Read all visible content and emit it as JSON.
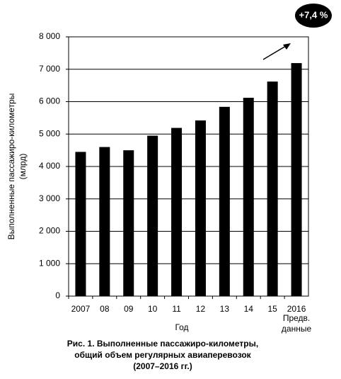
{
  "chart_data": {
    "type": "bar",
    "title_lines": [
      "Рис. 1. Выполненные пассажиро-километры,",
      "общий объем регулярных авиаперевозок",
      "(2007–2016 гг.)"
    ],
    "y_label_lines": [
      "Выполненные пассажиро-километры",
      "(млрд)"
    ],
    "x_label": "Год",
    "note_lines": [
      "Предв.",
      "данные"
    ],
    "annotation": "+7,4 %",
    "categories": [
      "2007",
      "08",
      "09",
      "10",
      "11",
      "12",
      "13",
      "14",
      "15",
      "2016"
    ],
    "values": [
      4450,
      4600,
      4500,
      4950,
      5190,
      5420,
      5840,
      6120,
      6620,
      7190
    ],
    "color": "#000000",
    "ylim": [
      0,
      8000
    ],
    "yticks": [
      0,
      {
        "value": 1000,
        "label": "1 000"
      },
      {
        "value": 2000,
        "label": "2 000"
      },
      {
        "value": 3000,
        "label": "3 000"
      },
      {
        "value": 4000,
        "label": "4 000"
      },
      {
        "value": 5000,
        "label": "5 000"
      },
      {
        "value": 6000,
        "label": "6 000"
      },
      {
        "value": 7000,
        "label": "7 000"
      },
      {
        "value": 8000,
        "label": "8 000"
      }
    ],
    "grid": true
  }
}
